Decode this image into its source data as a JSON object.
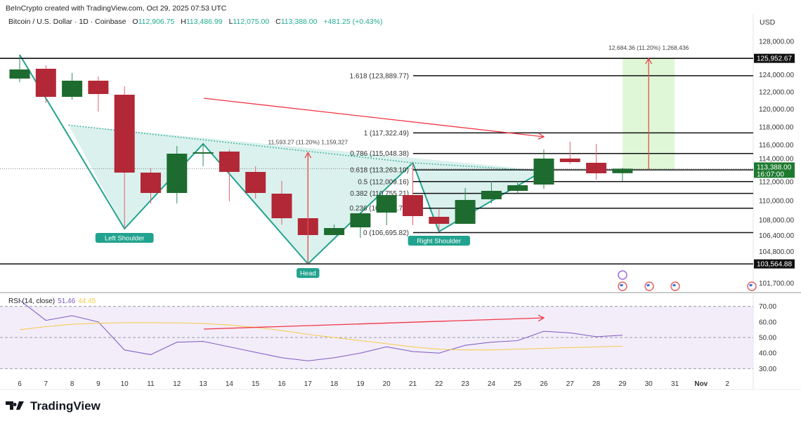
{
  "header": {
    "credit": "BeInCrypto created with TradingView.com, Oct 29, 2025 07:53 UTC",
    "symbol": "Bitcoin / U.S. Dollar · 1D · Coinbase",
    "open_label": "O",
    "open": "112,906.75",
    "high_label": "H",
    "high": "113,486.99",
    "low_label": "L",
    "low": "112,075.00",
    "close_label": "C",
    "close": "113,388.00",
    "change": "+481.25 (+0.43%)",
    "currency": "USD"
  },
  "colors": {
    "up": "#1e6b30",
    "down": "#b22836",
    "pattern": "#22a38f",
    "pattern_fill": "#d6efeb",
    "arrow": "#f23645",
    "rsi": "#7e57c2",
    "rsi_ma": "#f7c948",
    "target_box": "#dff7d6"
  },
  "chart_data": [
    {
      "type": "candlestick",
      "title": "Bitcoin / U.S. Dollar · 1D · Coinbase",
      "y_scale": "log",
      "ylim": [
        100900,
        129500
      ],
      "y_ticks": [
        "128,000.00",
        "124,000.00",
        "122,000.00",
        "120,000.00",
        "118,000.00",
        "116,000.00",
        "114,000.00",
        "112,000.00",
        "110,000.00",
        "108,000.00",
        "106,400.00",
        "104,800.00",
        "101,700.00"
      ],
      "y_tick_values": [
        128000,
        124000,
        122000,
        120000,
        118000,
        116000,
        114000,
        112000,
        110000,
        108000,
        106400,
        104800,
        101700
      ],
      "x_ticks": [
        "6",
        "7",
        "8",
        "9",
        "10",
        "11",
        "12",
        "13",
        "14",
        "15",
        "16",
        "17",
        "18",
        "19",
        "20",
        "21",
        "22",
        "23",
        "24",
        "25",
        "26",
        "27",
        "28",
        "29",
        "30",
        "31",
        "Nov",
        "2"
      ],
      "candles": [
        {
          "date": "Oct 6",
          "o": 123548,
          "h": 126386,
          "l": 123136,
          "c": 124626
        },
        {
          "date": "Oct 7",
          "o": 124708,
          "h": 125127,
          "l": 120693,
          "c": 121420
        },
        {
          "date": "Oct 8",
          "o": 121420,
          "h": 124210,
          "l": 121097,
          "c": 123300
        },
        {
          "date": "Oct 9",
          "o": 123300,
          "h": 123795,
          "l": 119729,
          "c": 121745
        },
        {
          "date": "Oct 10",
          "o": 121664,
          "h": 122643,
          "l": 107090,
          "c": 112969
        },
        {
          "date": "Oct 11",
          "o": 112969,
          "h": 113424,
          "l": 109696,
          "c": 110802
        },
        {
          "date": "Oct 12",
          "o": 110802,
          "h": 115873,
          "l": 109696,
          "c": 115025
        },
        {
          "date": "Oct 13",
          "o": 115101,
          "h": 116105,
          "l": 113651,
          "c": 115178
        },
        {
          "date": "Oct 14",
          "o": 115255,
          "h": 115487,
          "l": 109917,
          "c": 113044
        },
        {
          "date": "Oct 15",
          "o": 113044,
          "h": 113651,
          "l": 110212,
          "c": 110802
        },
        {
          "date": "Oct 16",
          "o": 110728,
          "h": 112068,
          "l": 107520,
          "c": 108169
        },
        {
          "date": "Oct 17",
          "o": 108169,
          "h": 115025,
          "l": 103565,
          "c": 106449
        },
        {
          "date": "Oct 18",
          "o": 106449,
          "h": 107520,
          "l": 106449,
          "c": 107162
        },
        {
          "date": "Oct 19",
          "o": 107233,
          "h": 108749,
          "l": 106164,
          "c": 108676
        },
        {
          "date": "Oct 20",
          "o": 108749,
          "h": 110580,
          "l": 107448,
          "c": 110580
        },
        {
          "date": "Oct 21",
          "o": 110580,
          "h": 114031,
          "l": 107448,
          "c": 108387
        },
        {
          "date": "Oct 22",
          "o": 108314,
          "h": 109185,
          "l": 106804,
          "c": 107593
        },
        {
          "date": "Oct 23",
          "o": 107593,
          "h": 111322,
          "l": 107593,
          "c": 110064
        },
        {
          "date": "Oct 24",
          "o": 110138,
          "h": 112068,
          "l": 109696,
          "c": 111025
        },
        {
          "date": "Oct 25",
          "o": 111025,
          "h": 112068,
          "l": 110653,
          "c": 111620
        },
        {
          "date": "Oct 26",
          "o": 111694,
          "h": 115487,
          "l": 111246,
          "c": 114488
        },
        {
          "date": "Oct 27",
          "o": 114488,
          "h": 116338,
          "l": 113879,
          "c": 114107
        },
        {
          "date": "Oct 28",
          "o": 114031,
          "h": 116105,
          "l": 112216,
          "c": 112895
        },
        {
          "date": "Oct 29",
          "o": 112906.75,
          "h": 113486.99,
          "l": 112075.0,
          "c": 113388.0
        }
      ],
      "price_labels": [
        {
          "text": "125,952.67",
          "value": 125952.67,
          "style": "dark"
        },
        {
          "text": "113,388.00",
          "sub": "16:07:00",
          "value": 113388,
          "style": "green"
        },
        {
          "text": "103,564.88",
          "value": 103564.88,
          "style": "dark"
        }
      ],
      "horizontal_lines": [
        125952.67,
        103564.88
      ],
      "fibonacci": [
        {
          "label": "1.618 (123,889.77)",
          "value": 123889.77
        },
        {
          "label": "1 (117,322.49)",
          "value": 117322.49
        },
        {
          "label": "0.786 (115,048.38)",
          "value": 115048.38
        },
        {
          "label": "0.618 (113,263.10)",
          "value": 113263.1
        },
        {
          "label": "0.5 (112,009.16)",
          "value": 112009.16
        },
        {
          "label": "0.382 (110,755.21)",
          "value": 110755.21
        },
        {
          "label": "0.236 (109,203.72)",
          "value": 109203.72
        },
        {
          "label": "0 (106,695.82)",
          "value": 106695.82
        }
      ],
      "pattern_labels": [
        {
          "text": "Left Shoulder",
          "day": 4,
          "value": 107090
        },
        {
          "text": "Head",
          "day": 11,
          "value": 103565
        },
        {
          "text": "Right Shoulder",
          "day": 16,
          "value": 106804
        }
      ],
      "measures": [
        {
          "text": "11,593.27 (11.20%) 1,159,327",
          "day": 11,
          "from": 103565,
          "to": 115158
        },
        {
          "text": "12,684.36 (11.20%) 1,268,436",
          "day": 24,
          "from": 113268,
          "to": 125952.67
        }
      ]
    },
    {
      "type": "line",
      "title": "RSI (14, close)",
      "value_rsi": "51.46",
      "value_ma": "44.45",
      "ylim": [
        25,
        75
      ],
      "y_ticks": [
        "70.00",
        "60.00",
        "50.00",
        "40.00",
        "30.00"
      ],
      "y_tick_values": [
        70,
        60,
        50,
        40,
        30
      ],
      "band": [
        30,
        70
      ],
      "series": [
        {
          "name": "RSI",
          "values": [
            74,
            61,
            64,
            60,
            42,
            39,
            47,
            47.5,
            44,
            40.5,
            37,
            35,
            37,
            40,
            44,
            41,
            40,
            45,
            47,
            48,
            54,
            53,
            50.5,
            51.46
          ]
        },
        {
          "name": "MA",
          "values": [
            55,
            57,
            58.5,
            59.2,
            59.5,
            59.5,
            59.4,
            59,
            58,
            56.5,
            54.5,
            52,
            50,
            48,
            46,
            44,
            42.5,
            42,
            42,
            42.5,
            43,
            43.5,
            44,
            44.45
          ]
        }
      ]
    }
  ],
  "footer": {
    "brand": "TradingView"
  }
}
